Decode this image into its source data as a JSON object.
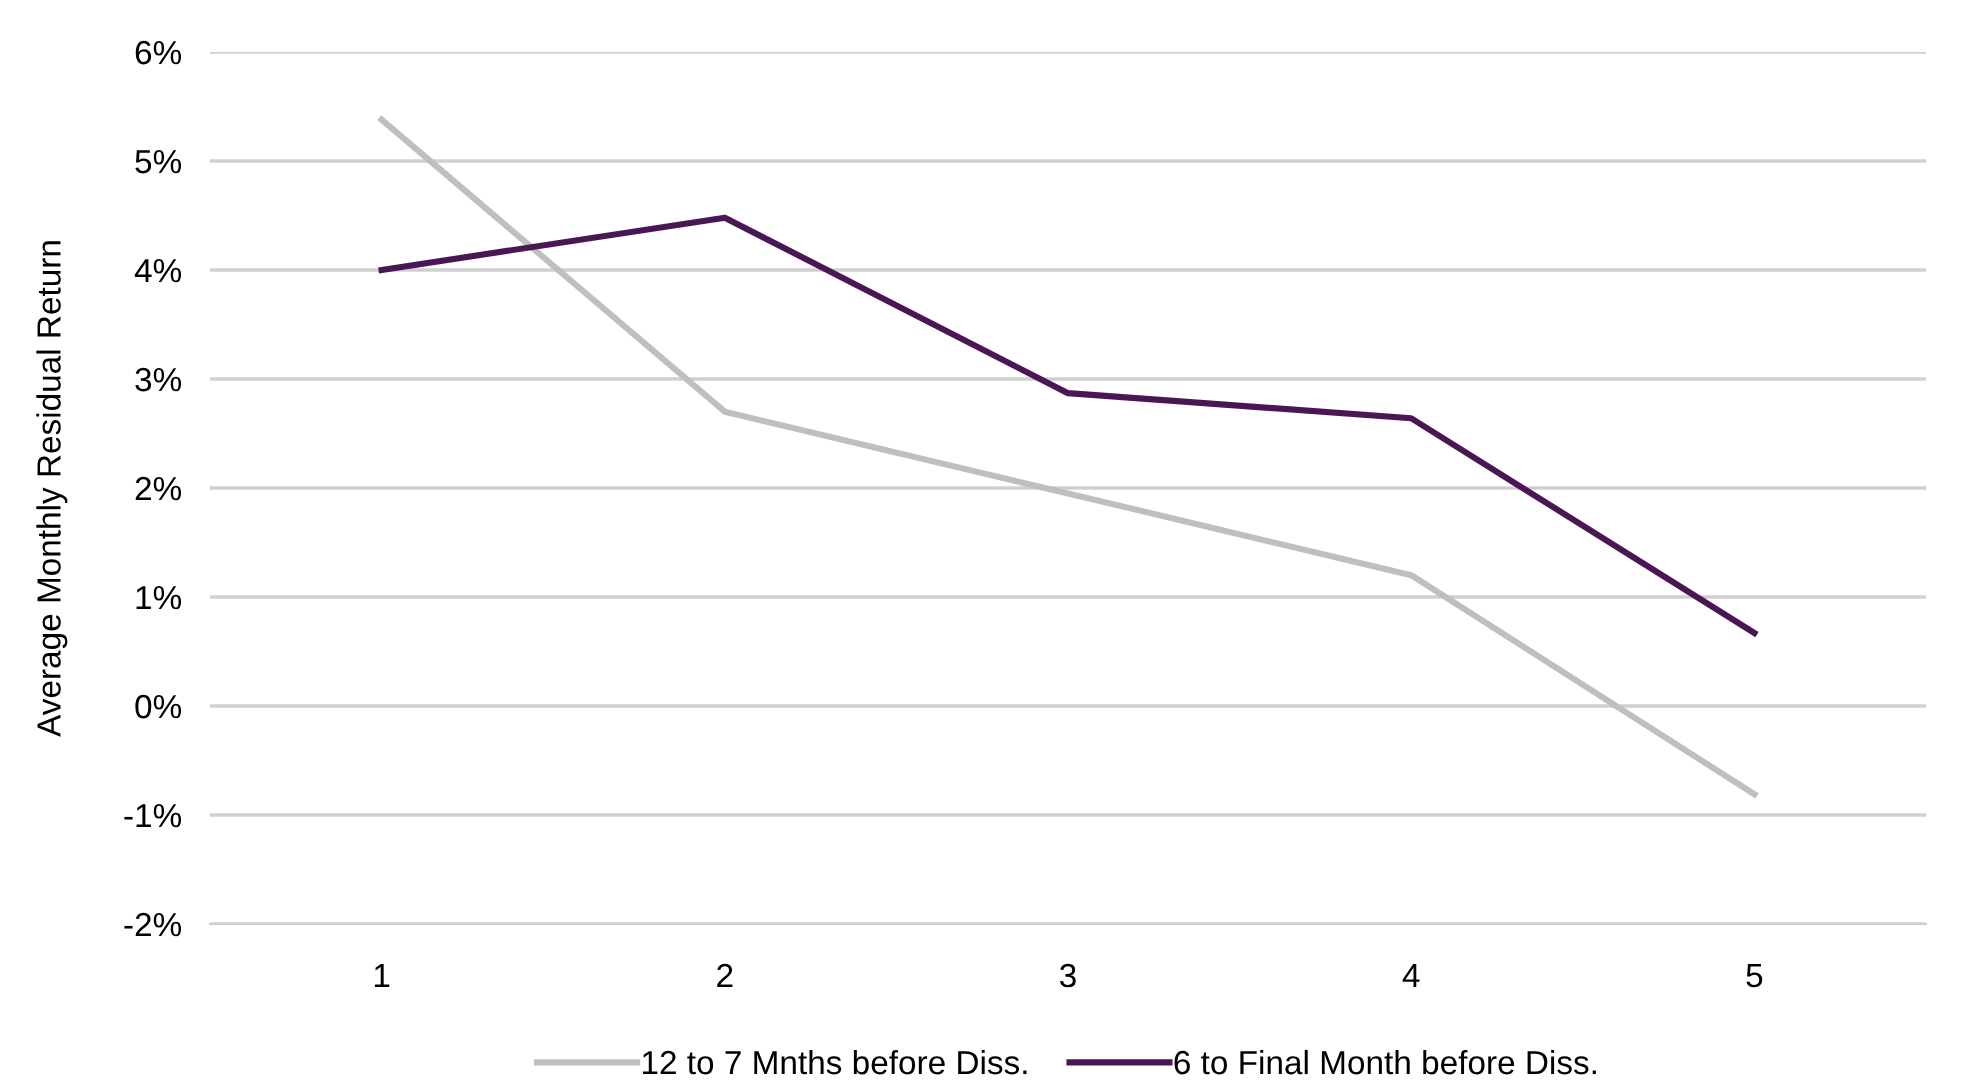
{
  "chart_data": {
    "type": "line",
    "ylabel": "Average Monthly Residual Return",
    "categories": [
      "1",
      "2",
      "3",
      "4",
      "5"
    ],
    "series": [
      {
        "name": "12 to 7 Mnths before Diss.",
        "color": "#bfbfbf",
        "values": [
          0.0538,
          0.027,
          0.0195,
          0.012,
          -0.0081
        ]
      },
      {
        "name": "6 to Final Month before Diss.",
        "color": "#4b1654",
        "values": [
          0.04,
          0.0448,
          0.0287,
          0.0264,
          0.0067
        ]
      }
    ],
    "ylim": [
      -0.02,
      0.06
    ],
    "yticks": [
      {
        "value": -0.02,
        "label": "-2%"
      },
      {
        "value": -0.01,
        "label": "-1%"
      },
      {
        "value": 0,
        "label": "0%"
      },
      {
        "value": 0.01,
        "label": "1%"
      },
      {
        "value": 0.02,
        "label": "2%"
      },
      {
        "value": 0.03,
        "label": "3%"
      },
      {
        "value": 0.04,
        "label": "4%"
      },
      {
        "value": 0.05,
        "label": "5%"
      },
      {
        "value": 0.06,
        "label": "6%"
      }
    ],
    "grid": "y",
    "legend": "bottom",
    "marker": "none",
    "line_style": "solid"
  }
}
